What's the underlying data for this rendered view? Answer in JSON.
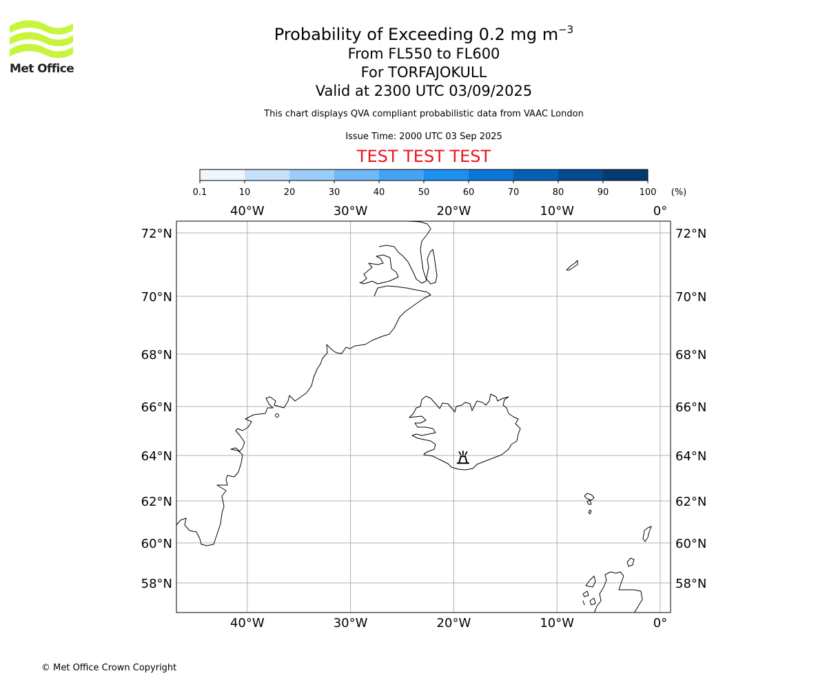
{
  "logo": {
    "text": "Met Office",
    "color": "#c8f43c"
  },
  "title": {
    "line1": "Probability of Exceeding 0.2 mg m",
    "line1_sup": "−3",
    "line2": "From FL550 to FL600",
    "line3": "For TORFAJOKULL",
    "line4": "Valid at 2300 UTC 03/09/2025"
  },
  "subtitle": "This chart displays QVA compliant probabilistic data from VAAC London",
  "issue_time": "Issue Time: 2000 UTC 03 Sep 2025",
  "test_banner": "TEST TEST TEST",
  "test_color": "#e8141e",
  "colorbar": {
    "ticks": [
      "0.1",
      "10",
      "20",
      "30",
      "40",
      "50",
      "60",
      "70",
      "80",
      "90",
      "100"
    ],
    "unit": "(%)",
    "colors": [
      "#f0f6fd",
      "#c6e2fb",
      "#9bcdf8",
      "#70b8f6",
      "#44a3f3",
      "#1e90f0",
      "#0a76d6",
      "#065fb3",
      "#044a8e",
      "#033b70",
      "#022a55"
    ]
  },
  "map": {
    "lon_ticks": [
      {
        "lon": -40,
        "label": "40°W"
      },
      {
        "lon": -30,
        "label": "30°W"
      },
      {
        "lon": -20,
        "label": "20°W"
      },
      {
        "lon": -10,
        "label": "10°W"
      },
      {
        "lon": 0,
        "label": "0°"
      }
    ],
    "lat_ticks": [
      {
        "lat": 72,
        "label": "72°N"
      },
      {
        "lat": 70,
        "label": "70°N"
      },
      {
        "lat": 68,
        "label": "68°N"
      },
      {
        "lat": 66,
        "label": "66°N"
      },
      {
        "lat": 64,
        "label": "64°N"
      },
      {
        "lat": 62,
        "label": "62°N"
      },
      {
        "lat": 60,
        "label": "60°N"
      },
      {
        "lat": 58,
        "label": "58°N"
      }
    ],
    "volcano": {
      "name": "TORFAJOKULL",
      "lat": 63.9,
      "lon": -19.1,
      "icon": "volcano-icon"
    }
  },
  "copyright": "© Met Office Crown Copyright"
}
